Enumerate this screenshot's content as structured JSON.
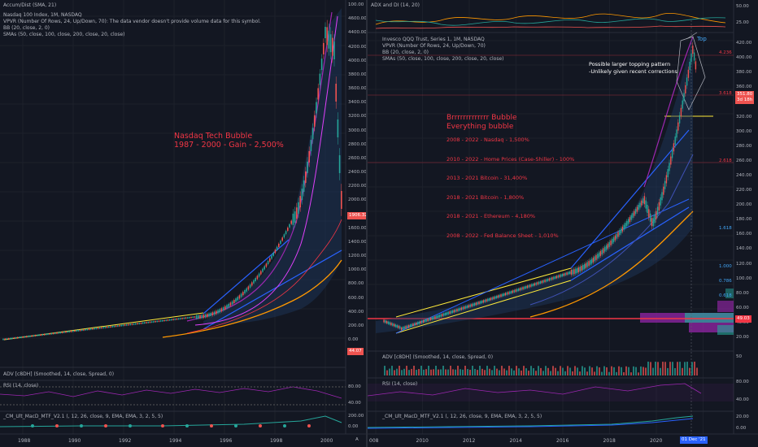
{
  "left": {
    "legend": {
      "accum": "Accum/Dist (SMA, 21)",
      "symbol": "Nasdaq 100 Index, 1M, NASDAQ",
      "vpvr": "VPVR (Number Of Rows, 24, Up/Down, 70): The data vendor doesn't provide volume data for this symbol.",
      "bb": "BB (20, close, 2, 0)",
      "smas": "SMAs (50, close, 100, close, 200, close, 20, close)"
    },
    "annotation": {
      "line1": "Nasdaq Tech Bubble",
      "line2": "1987 - 2000 - Gain - 2,500%"
    },
    "price_axis": [
      "100.00",
      "4600.00",
      "4400.00",
      "4200.00",
      "4000.00",
      "3800.00",
      "3600.00",
      "3400.00",
      "3200.00",
      "3000.00",
      "2800.00",
      "2600.00",
      "2400.00",
      "2200.00",
      "2000.00",
      "1800.00",
      "1600.00",
      "1400.00",
      "1200.00",
      "1000.00",
      "800.00",
      "600.00",
      "400.00",
      "200.00",
      "0.00"
    ],
    "price_tag": "1906.32",
    "low_tag": "44.07",
    "adv_label": "ADV [c8DH] (Smoothed, 14, close, Spread, 0)",
    "rsi_label": "RSI (14, close)",
    "rsi_axis": [
      "80.00",
      "40.00"
    ],
    "macd_label": "_CM_Ult_MacD_MTF_V2.1 (, 12, 26, close, 9, EMA, EMA, 3, 2, 5, 5)",
    "macd_axis": [
      "200.00",
      "0.00"
    ],
    "x_axis": [
      "1988",
      "1990",
      "1992",
      "1994",
      "1996",
      "1998",
      "2000"
    ],
    "corner": "A"
  },
  "right": {
    "adx_label": "ADX and DI (14, 20)",
    "adx_axis": [
      "50.00",
      "25.00"
    ],
    "legend": {
      "symbol": "Invesco QQQ Trust, Series 1, 1M, NASDAQ",
      "vpvr": "VPVR (Number Of Rows, 24, Up/Down, 70)",
      "bb": "BB (20, close, 2, 0)",
      "smas": "SMAs (50, close, 100, close, 200, close, 20, close)"
    },
    "top_label": "Top",
    "topping_note": {
      "line1": "Possible larger topping pattern",
      "line2": "-Unlikely given recent corrections"
    },
    "bubble_title": {
      "line1": "Brrrrrrrrrrrrr Bubble",
      "line2": "Everything bubble"
    },
    "gains": [
      "2008 - 2022 - Nasdaq - 1,500%",
      "2010 - 2022 - Home Prices (Case-Shiller) - 100%",
      "2013 - 2021 Bitcoin - 31,400%",
      "2018 - 2021 Bitcoin - 1,800%",
      "2018 - 2021 - Ethereum - 4,180%",
      "2008 - 2022 - Fed Balance Sheet - 1,010%"
    ],
    "price_axis": [
      "420.00",
      "400.00",
      "380.00",
      "360.00",
      "340.00",
      "320.00",
      "300.00",
      "280.00",
      "260.00",
      "240.00",
      "220.00",
      "200.00",
      "180.00",
      "160.00",
      "140.00",
      "120.00",
      "100.00",
      "80.00",
      "60.00",
      "40.00",
      "20.00"
    ],
    "fib_labels": [
      "4.236",
      "3.618",
      "2.618",
      "1.618",
      "1.000",
      "0.786",
      "0.618"
    ],
    "price_tag": "351.80",
    "price_tag_sub": "3d 18h",
    "low_tag": "49.03",
    "adv_label": "ADV [c8DH] (Smoothed, 14, close, Spread, 0)",
    "adv_axis": [
      "50"
    ],
    "rsi_label": "RSI (14, close)",
    "rsi_axis": [
      "80.00",
      "40.00"
    ],
    "macd_label": "_CM_Ult_MacD_MTF_V2.1 (, 12, 26, close, 9, EMA, EMA, 3, 2, 5, 5)",
    "macd_axis": [
      "20.00",
      "0.00"
    ],
    "x_axis": [
      "008",
      "2010",
      "2012",
      "2014",
      "2016",
      "2018",
      "2020"
    ],
    "date_tag": "01 Dec '21"
  },
  "colors": {
    "bg": "#131722",
    "grid": "#1e222d",
    "up": "#26a69a",
    "down": "#ef5350",
    "annotation": "#f23645",
    "blue_line": "#2962ff",
    "purple": "#9c27b0",
    "orange": "#ff9800",
    "yellow": "#ffeb3b",
    "sma_blue": "#3f51b5"
  }
}
